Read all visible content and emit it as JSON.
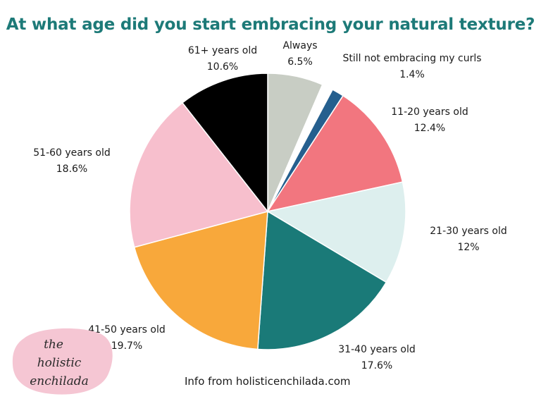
{
  "title": "At what age did you start embracing your natural texture?",
  "colors": {
    "title": "#1d7a78",
    "slices": [
      "#c8cdc4",
      "#ffffff",
      "#255f8e",
      "#f2767f",
      "#ddefee",
      "#1a7a78",
      "#f8a83b",
      "#f7bfcd",
      "#000000"
    ],
    "logo_blob": "#f5c6d3"
  },
  "chart_data": {
    "type": "pie",
    "title": "At what age did you start embracing your natural texture?",
    "slices": [
      {
        "name": "Always",
        "value": 6.5,
        "label": "6.5%"
      },
      {
        "name": "",
        "value": 1.3,
        "label": ""
      },
      {
        "name": "Still not embracing my curls",
        "value": 1.4,
        "label": "1.4%"
      },
      {
        "name": "11-20 years old",
        "value": 12.4,
        "label": "12.4%"
      },
      {
        "name": "21-30 years old",
        "value": 12,
        "label": "12%"
      },
      {
        "name": "31-40 years old",
        "value": 17.6,
        "label": "17.6%"
      },
      {
        "name": "41-50 years old",
        "value": 19.7,
        "label": "19.7%"
      },
      {
        "name": "51-60 years old",
        "value": 18.6,
        "label": "18.6%"
      },
      {
        "name": "61+ years old",
        "value": 10.6,
        "label": "10.6%"
      }
    ],
    "start_angle_deg": 0,
    "direction": "clockwise"
  },
  "footer": "Info from holisticenchilada.com",
  "logo": {
    "line1": "the",
    "line2": "holistic",
    "line3": "enchilada"
  }
}
